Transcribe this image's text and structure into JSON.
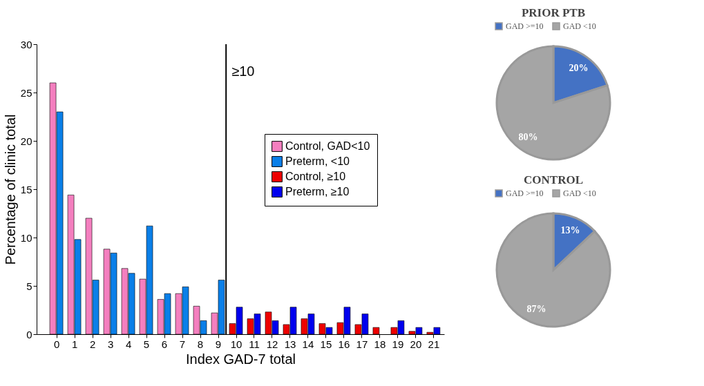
{
  "chart_data": [
    {
      "type": "bar",
      "xlabel": "Index GAD-7 total",
      "ylabel": "Percentage of clinic total",
      "x": [
        0,
        1,
        2,
        3,
        4,
        5,
        6,
        7,
        8,
        9,
        10,
        11,
        12,
        13,
        14,
        15,
        16,
        17,
        18,
        19,
        20,
        21
      ],
      "series": [
        {
          "name": "Control, GAD<10",
          "color": "#f47fbf",
          "values": [
            26,
            14.4,
            12,
            8.8,
            6.8,
            5.7,
            3.6,
            4.2,
            2.9,
            2.2,
            null,
            null,
            null,
            null,
            null,
            null,
            null,
            null,
            null,
            null,
            null,
            null
          ]
        },
        {
          "name": "Preterm, <10",
          "color": "#0a7fe8",
          "values": [
            23,
            9.8,
            5.6,
            8.4,
            6.3,
            11.2,
            4.2,
            4.9,
            1.4,
            5.6,
            null,
            null,
            null,
            null,
            null,
            null,
            null,
            null,
            null,
            null,
            null,
            null
          ]
        },
        {
          "name": "Control, ≥10",
          "color": "#ee0000",
          "values": [
            null,
            null,
            null,
            null,
            null,
            null,
            null,
            null,
            null,
            null,
            1.1,
            1.6,
            2.3,
            1.0,
            1.6,
            1.1,
            1.2,
            1.0,
            0.7,
            0.7,
            0.3,
            0.2
          ]
        },
        {
          "name": "Preterm, ≥10",
          "color": "#0000ee",
          "values": [
            null,
            null,
            null,
            null,
            null,
            null,
            null,
            null,
            null,
            null,
            2.8,
            2.1,
            1.4,
            2.8,
            2.1,
            0.7,
            2.8,
            2.1,
            null,
            1.4,
            0.7,
            0.7
          ]
        }
      ],
      "xlim": [
        -1.1,
        21.6
      ],
      "xticks": [
        0,
        1,
        2,
        3,
        4,
        5,
        6,
        7,
        8,
        9,
        10,
        11,
        12,
        13,
        14,
        15,
        16,
        17,
        18,
        19,
        20,
        21
      ],
      "ylim": [
        0,
        30
      ],
      "yticks": [
        0,
        5,
        10,
        15,
        20,
        25,
        30
      ],
      "ref_lines": [
        {
          "axis": "x",
          "value": 9.45,
          "label": "≥10",
          "color": "#000000"
        }
      ],
      "grid": false,
      "legend": "right"
    },
    {
      "type": "pie",
      "title": "PRIOR PTB",
      "categories": [
        "GAD >=10",
        "GAD <10"
      ],
      "values": [
        20,
        80
      ],
      "colors": [
        "#4472c4",
        "#a5a5a5"
      ],
      "value_labels": [
        "20%",
        "80%"
      ],
      "legend": "top"
    },
    {
      "type": "pie",
      "title": "CONTROL",
      "categories": [
        "GAD >=10",
        "GAD <10"
      ],
      "values": [
        13,
        87
      ],
      "colors": [
        "#4472c4",
        "#a5a5a5"
      ],
      "value_labels": [
        "13%",
        "87%"
      ],
      "legend": "top"
    }
  ]
}
